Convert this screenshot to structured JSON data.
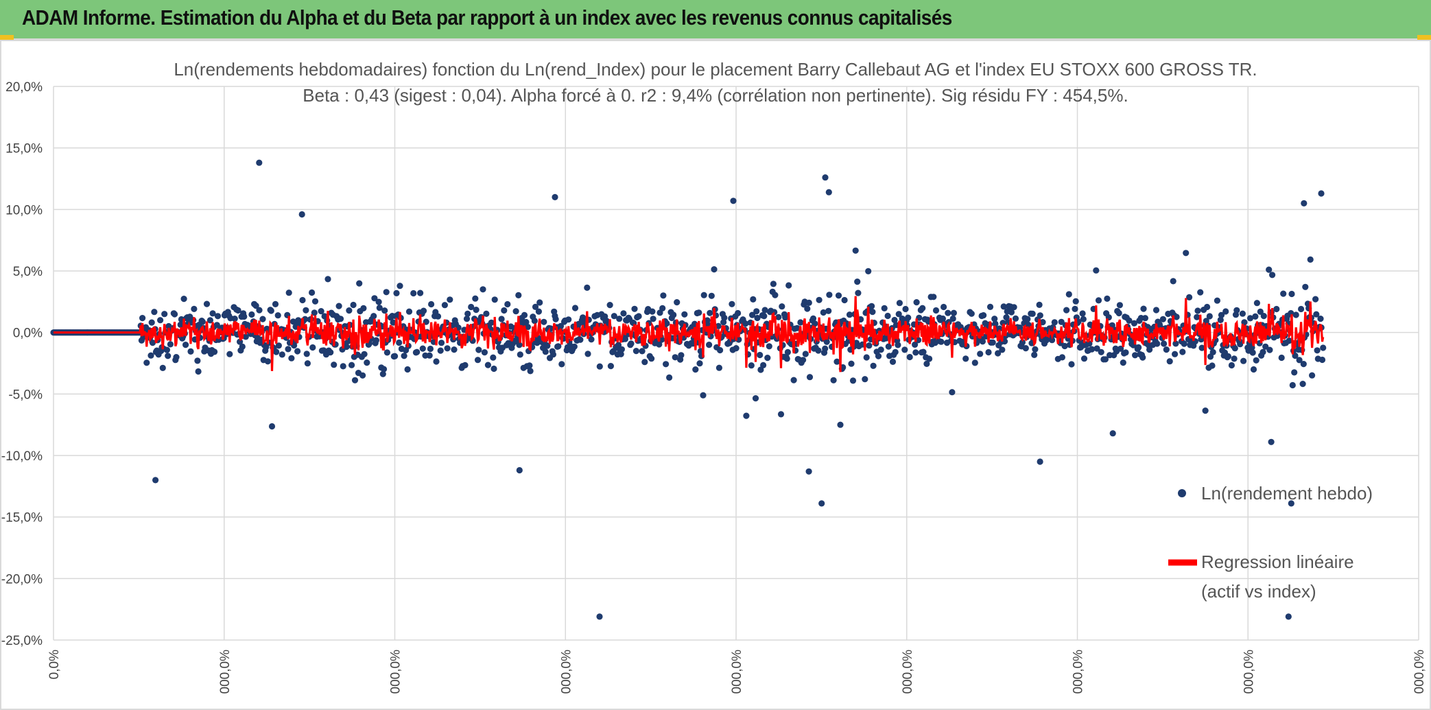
{
  "header": {
    "title": "ADAM Informe. Estimation du Alpha et du Beta par rapport à un index avec les revenus connus capitalisés"
  },
  "colors": {
    "banner": "#7dc67a",
    "points": "#1f3b6e",
    "regression": "#ff0000",
    "grid": "#d9d9d9"
  },
  "chart_data": {
    "type": "scatter",
    "title": "Ln(rendements hebdomadaires) fonction du Ln(rend_Index) pour le placement Barry Callebaut AG et l'index EU STOXX 600 GROSS TR.",
    "subtitle": "Beta : 0,43 (sigest : 0,04). Alpha forcé à 0. r2 : 9,4% (corrélation non pertinente). Sig résidu FY : 454,5%.",
    "y_ticks": [
      "20,0%",
      "15,0%",
      "10,0%",
      "5,0%",
      "0,0%",
      "-5,0%",
      "-10,0%",
      "-15,0%",
      "-20,0%",
      "-25,0%"
    ],
    "x_ticks": [
      "0,0%",
      "000,0%",
      "000,0%",
      "000,0%",
      "000,0%",
      "000,0%",
      "000,0%",
      "000,0%",
      "000,0%"
    ],
    "ylim": [
      -25,
      20
    ],
    "x_range": [
      0,
      1500
    ],
    "grid": true,
    "legend_position": "right",
    "series": [
      {
        "name": "Ln(rendement hebdo)",
        "type": "scatter",
        "color": "#1f3b6e",
        "point_count": 1500
      },
      {
        "name": "Regression linéaire (actif vs index)",
        "label_lines": [
          "Regression linéaire",
          "(actif vs index)"
        ],
        "type": "line",
        "color": "#ff0000"
      }
    ],
    "notable_points": [
      {
        "x": 226,
        "y": 13.8
      },
      {
        "x": 551,
        "y": 11.0
      },
      {
        "x": 600,
        "y": -23.1
      },
      {
        "x": 848,
        "y": 12.6
      },
      {
        "x": 852,
        "y": 11.4
      },
      {
        "x": 844,
        "y": -13.9
      },
      {
        "x": 830,
        "y": -11.3
      },
      {
        "x": 112,
        "y": -12.0
      },
      {
        "x": 1393,
        "y": 11.3
      },
      {
        "x": 1374,
        "y": 10.5
      },
      {
        "x": 1360,
        "y": -13.9
      },
      {
        "x": 1357,
        "y": -23.1
      },
      {
        "x": 1084,
        "y": -10.5
      },
      {
        "x": 1338,
        "y": -8.9
      },
      {
        "x": 1164,
        "y": -8.2
      },
      {
        "x": 512,
        "y": -11.2
      },
      {
        "x": 747,
        "y": 10.7
      },
      {
        "x": 273,
        "y": 9.6
      }
    ]
  }
}
